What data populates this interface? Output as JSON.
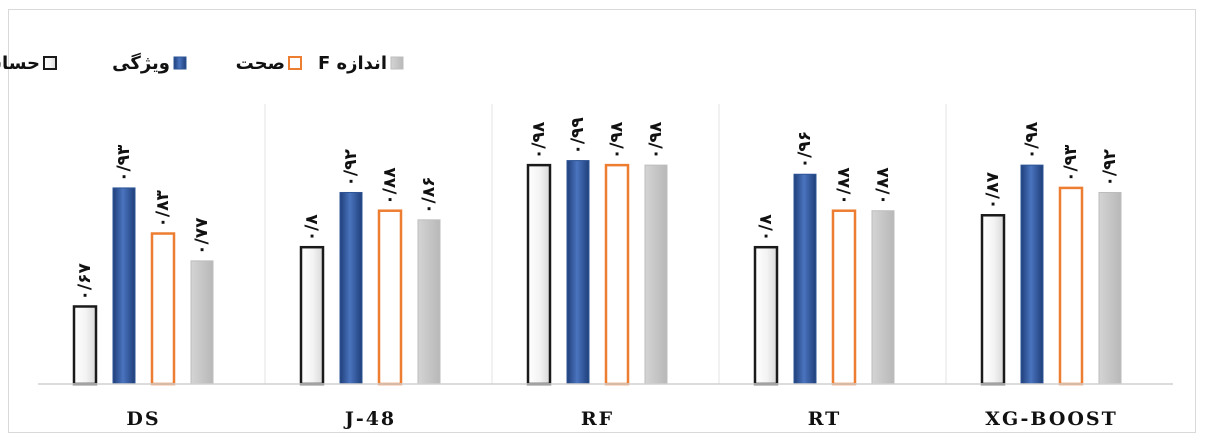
{
  "chart_data": {
    "type": "bar",
    "categories": [
      "DS",
      "J-48",
      "RF",
      "RT",
      "XG-BOOST"
    ],
    "ylim": [
      0,
      1
    ],
    "grid": false,
    "legend_position": "top-left",
    "series": [
      {
        "name": "حساسیت",
        "values": [
          0.67,
          0.8,
          0.98,
          0.8,
          0.87
        ],
        "labels": [
          "۰/۶۷",
          "۰/۸",
          "۰/۹۸",
          "۰/۸",
          "۰/۸۷"
        ],
        "style": "black-outline",
        "color": "#1a1a1a"
      },
      {
        "name": "ویژگی",
        "values": [
          0.93,
          0.92,
          0.99,
          0.96,
          0.98
        ],
        "labels": [
          "۰/۹۳",
          "۰/۹۲",
          "۰/۹۹",
          "۰/۹۶",
          "۰/۹۸"
        ],
        "style": "blue-fill",
        "color": "#2e5597"
      },
      {
        "name": "صحت",
        "values": [
          0.83,
          0.88,
          0.98,
          0.88,
          0.93
        ],
        "labels": [
          "۰/۸۳",
          "۰/۸۸",
          "۰/۹۸",
          "۰/۸۸",
          "۰/۹۳"
        ],
        "style": "orange-outline",
        "color": "#ed7d31"
      },
      {
        "name": "اندازه F",
        "values": [
          0.77,
          0.86,
          0.98,
          0.88,
          0.92
        ],
        "labels": [
          "۰/۷۷",
          "۰/۸۶",
          "۰/۹۸",
          "۰/۸۸",
          "۰/۹۲"
        ],
        "style": "gray-fill",
        "color": "#c9c9c9"
      }
    ]
  }
}
